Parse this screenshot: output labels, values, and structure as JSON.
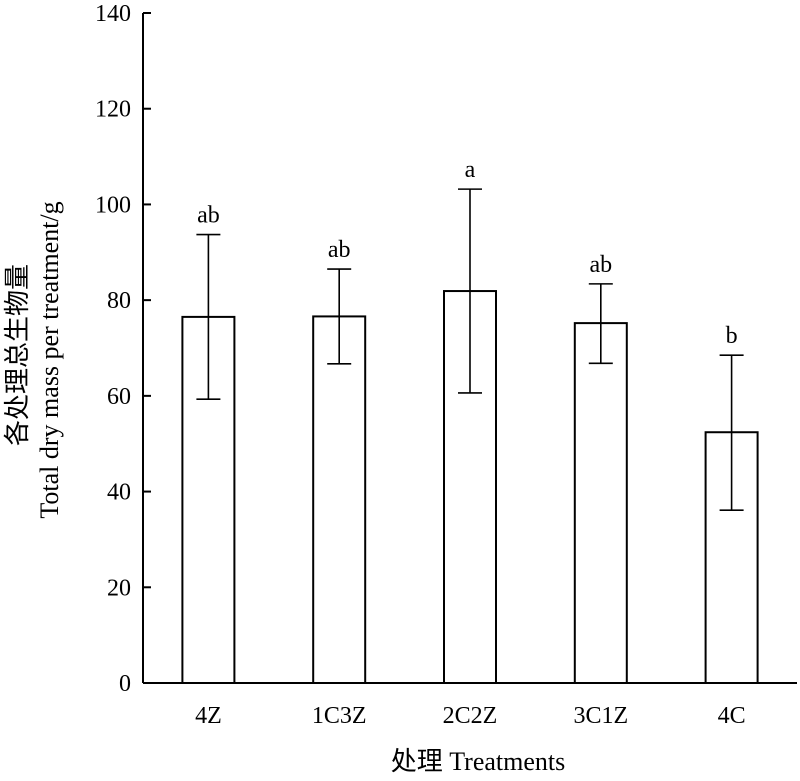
{
  "chart_data": {
    "type": "bar",
    "categories": [
      "4Z",
      "1C3Z",
      "2C2Z",
      "3C1Z",
      "4C"
    ],
    "values": [
      76.5,
      76.6,
      81.9,
      75.2,
      52.4
    ],
    "error_upper": [
      93.7,
      86.5,
      103.2,
      83.4,
      68.5
    ],
    "error_lower": [
      59.3,
      66.7,
      60.6,
      66.8,
      36.1
    ],
    "significance": [
      "ab",
      "ab",
      "a",
      "ab",
      "b"
    ],
    "ylim": [
      0,
      140
    ],
    "yticks": [
      "0",
      "20",
      "40",
      "60",
      "80",
      "100",
      "120",
      "140"
    ],
    "ylabel_cn": "各处理总生物量",
    "ylabel_en": "Total  dry mass per treatment/g",
    "xlabel": "处理 Treatments",
    "grid": false,
    "colors": {
      "bar_fill": "#ffffff",
      "bar_edge": "#000000",
      "axis": "#000000"
    }
  }
}
